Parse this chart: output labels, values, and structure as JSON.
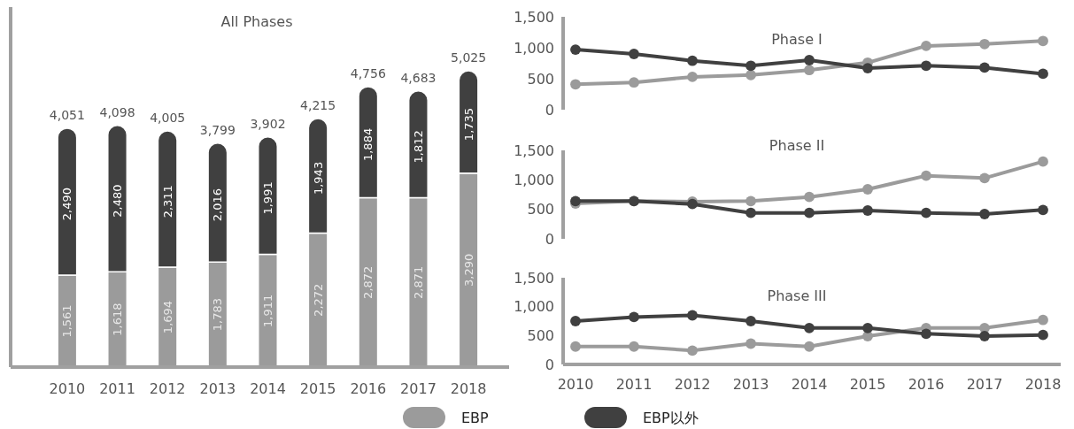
{
  "chart_data": [
    {
      "type": "bar",
      "title": "All Phases",
      "stacked": true,
      "legend": "bottom",
      "categories": [
        "2010",
        "2011",
        "2012",
        "2013",
        "2014",
        "2015",
        "2016",
        "2017",
        "2018"
      ],
      "series": [
        {
          "name": "EBP",
          "color": "#9b9b9b",
          "values": [
            1561,
            1618,
            1694,
            1783,
            1911,
            2272,
            2872,
            2871,
            3290
          ],
          "value_labels": [
            "1,561",
            "1,618",
            "1,694",
            "1,783",
            "1,911",
            "2,272",
            "2,872",
            "2,871",
            "3,290"
          ]
        },
        {
          "name": "EBP以外",
          "color": "#404040",
          "values": [
            2490,
            2480,
            2311,
            2016,
            1991,
            1943,
            1884,
            1812,
            1735
          ],
          "value_labels": [
            "2,490",
            "2,480",
            "2,311",
            "2,016",
            "1,991",
            "1,943",
            "1,884",
            "1,812",
            "1,735"
          ]
        }
      ],
      "totals": [
        "4,051",
        "4,098",
        "4,005",
        "3,799",
        "3,902",
        "4,215",
        "4,756",
        "4,683",
        "5,025"
      ]
    },
    {
      "type": "line",
      "title": "Phase I",
      "marker": "circle",
      "tick_labels": "y",
      "categories": [
        "2010",
        "2011",
        "2012",
        "2013",
        "2014",
        "2015",
        "2016",
        "2017",
        "2018"
      ],
      "ylim": [
        0,
        1500
      ],
      "yticks": [
        {
          "value": 0,
          "label": "0"
        },
        {
          "value": 500,
          "label": "500"
        },
        {
          "value": 1000,
          "label": "1,000"
        },
        {
          "value": 1500,
          "label": "1,500"
        }
      ],
      "series": [
        {
          "color": "#9b9b9b",
          "values": [
            410,
            440,
            530,
            560,
            640,
            760,
            1030,
            1060,
            1110
          ]
        },
        {
          "color": "#404040",
          "values": [
            970,
            900,
            790,
            710,
            800,
            670,
            710,
            680,
            580
          ]
        }
      ]
    },
    {
      "type": "line",
      "title": "Phase II",
      "marker": "circle",
      "tick_labels": "y",
      "categories": [
        "2010",
        "2011",
        "2012",
        "2013",
        "2014",
        "2015",
        "2016",
        "2017",
        "2018"
      ],
      "ylim": [
        0,
        1500
      ],
      "yticks": [
        {
          "value": 0,
          "label": "0"
        },
        {
          "value": 500,
          "label": "500"
        },
        {
          "value": 1000,
          "label": "1,000"
        },
        {
          "value": 1500,
          "label": "1,500"
        }
      ],
      "series": [
        {
          "color": "#9b9b9b",
          "values": [
            600,
            640,
            630,
            640,
            710,
            840,
            1070,
            1030,
            1310
          ]
        },
        {
          "color": "#404040",
          "values": [
            640,
            640,
            590,
            440,
            440,
            480,
            440,
            420,
            490
          ]
        }
      ]
    },
    {
      "type": "line",
      "title": "Phase III",
      "marker": "circle",
      "categories": [
        "2010",
        "2011",
        "2012",
        "2013",
        "2014",
        "2015",
        "2016",
        "2017",
        "2018"
      ],
      "ylim": [
        0,
        1500
      ],
      "yticks": [
        {
          "value": 0,
          "label": "0"
        },
        {
          "value": 500,
          "label": "500"
        },
        {
          "value": 1000,
          "label": "1,000"
        },
        {
          "value": 1500,
          "label": "1,500"
        }
      ],
      "series": [
        {
          "color": "#9b9b9b",
          "values": [
            310,
            310,
            240,
            360,
            310,
            490,
            630,
            630,
            770
          ]
        },
        {
          "color": "#404040",
          "values": [
            750,
            820,
            850,
            750,
            630,
            630,
            530,
            490,
            510
          ]
        }
      ]
    }
  ]
}
